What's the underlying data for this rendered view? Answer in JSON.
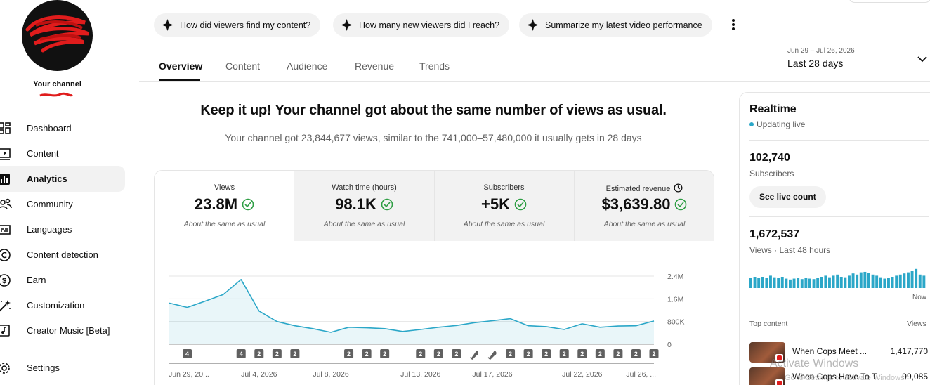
{
  "sidebar": {
    "channel_label": "Your channel",
    "nav": [
      {
        "label": "Dashboard",
        "icon": "dashboard-icon"
      },
      {
        "label": "Content",
        "icon": "content-icon"
      },
      {
        "label": "Analytics",
        "icon": "analytics-icon",
        "active": true
      },
      {
        "label": "Community",
        "icon": "community-icon"
      },
      {
        "label": "Languages",
        "icon": "languages-icon"
      },
      {
        "label": "Content detection",
        "icon": "copyright-icon"
      },
      {
        "label": "Earn",
        "icon": "dollar-icon"
      },
      {
        "label": "Customization",
        "icon": "magic-wand-icon"
      },
      {
        "label": "Creator Music [Beta]",
        "icon": "music-note-icon"
      },
      {
        "label": "Settings",
        "icon": "gear-icon"
      }
    ]
  },
  "prompts": [
    {
      "label": "How did viewers find my content?",
      "icon": "sparkle-icon"
    },
    {
      "label": "How many new viewers did I reach?",
      "icon": "sparkle-icon"
    },
    {
      "label": "Summarize my latest video performance",
      "icon": "sparkle-icon"
    }
  ],
  "tabs": [
    {
      "label": "Overview",
      "active": true
    },
    {
      "label": "Content"
    },
    {
      "label": "Audience"
    },
    {
      "label": "Revenue"
    },
    {
      "label": "Trends"
    }
  ],
  "date_filter": {
    "range": "Jun 29 – Jul 26, 2026",
    "preset": "Last 28 days"
  },
  "summary": {
    "headline": "Keep it up! Your channel got about the same number of views as usual.",
    "subline": "Your channel got 23,844,677 views, similar to the 741,000–57,480,000 it usually gets in 28 days"
  },
  "metrics": [
    {
      "label": "Views",
      "value": "23.8M",
      "note": "About the same as usual",
      "active": true
    },
    {
      "label": "Watch time (hours)",
      "value": "98.1K",
      "note": "About the same as usual"
    },
    {
      "label": "Subscribers",
      "value": "+5K",
      "note": "About the same as usual"
    },
    {
      "label": "Estimated revenue",
      "value": "$3,639.80",
      "note": "About the same as usual"
    }
  ],
  "colors": {
    "accent": "#2ba7c8",
    "check": "#2e9e44",
    "marker": "#606060"
  },
  "chart_data": {
    "type": "area",
    "y_ticks": [
      "2.4M",
      "1.6M",
      "800K",
      "0"
    ],
    "ylim": [
      0,
      2400000
    ],
    "x_tick_labels": [
      "Jun 29, 20...",
      "Jul 4, 2026",
      "Jul 8, 2026",
      "Jul 13, 2026",
      "Jul 17, 2026",
      "Jul 22, 2026",
      "Jul 26, ..."
    ],
    "x_tick_days": [
      0,
      5,
      9,
      14,
      18,
      23,
      27
    ],
    "values": [
      1450000,
      1300000,
      1520000,
      1750000,
      2280000,
      1170000,
      800000,
      650000,
      550000,
      420000,
      600000,
      580000,
      550000,
      450000,
      520000,
      600000,
      660000,
      760000,
      830000,
      900000,
      650000,
      620000,
      520000,
      720000,
      600000,
      640000,
      650000,
      820000
    ],
    "markers": [
      {
        "day": 1,
        "label": "4"
      },
      {
        "day": 4,
        "label": "4"
      },
      {
        "day": 5,
        "label": "2"
      },
      {
        "day": 6,
        "label": "2"
      },
      {
        "day": 7,
        "label": "2"
      },
      {
        "day": 10,
        "label": "2"
      },
      {
        "day": 11,
        "label": "2"
      },
      {
        "day": 12,
        "label": "2"
      },
      {
        "day": 14,
        "label": "2"
      },
      {
        "day": 15,
        "label": "2"
      },
      {
        "day": 16,
        "label": "2"
      },
      {
        "day": 17,
        "label": "shorts"
      },
      {
        "day": 18,
        "label": "shorts"
      },
      {
        "day": 19,
        "label": "2"
      },
      {
        "day": 20,
        "label": "2"
      },
      {
        "day": 21,
        "label": "2"
      },
      {
        "day": 22,
        "label": "2"
      },
      {
        "day": 23,
        "label": "2"
      },
      {
        "day": 24,
        "label": "2"
      },
      {
        "day": 25,
        "label": "2"
      },
      {
        "day": 26,
        "label": "2"
      },
      {
        "day": 27,
        "label": "2"
      }
    ]
  },
  "realtime": {
    "title": "Realtime",
    "live": "Updating live",
    "subscribers": "102,740",
    "subscribers_label": "Subscribers",
    "see_live": "See live count",
    "views": "1,672,537",
    "views_label": "Views · Last 48 hours",
    "now_label": "Now",
    "bars": [
      0.45,
      0.5,
      0.45,
      0.5,
      0.45,
      0.55,
      0.48,
      0.45,
      0.5,
      0.42,
      0.38,
      0.42,
      0.45,
      0.4,
      0.45,
      0.42,
      0.4,
      0.45,
      0.5,
      0.55,
      0.48,
      0.55,
      0.6,
      0.5,
      0.48,
      0.55,
      0.65,
      0.6,
      0.7,
      0.72,
      0.68,
      0.6,
      0.55,
      0.48,
      0.42,
      0.45,
      0.5,
      0.55,
      0.6,
      0.65,
      0.7,
      0.75,
      0.85,
      0.6,
      0.55
    ],
    "top_content_label": "Top content",
    "views_col": "Views",
    "top": [
      {
        "title": "When Cops Meet ...",
        "views": "1,417,770"
      },
      {
        "title": "When Cops Have To T...",
        "views": "99,085"
      }
    ]
  },
  "watermark": {
    "title": "Activate Windows",
    "sub": "Go to Settings to activate Windows."
  }
}
